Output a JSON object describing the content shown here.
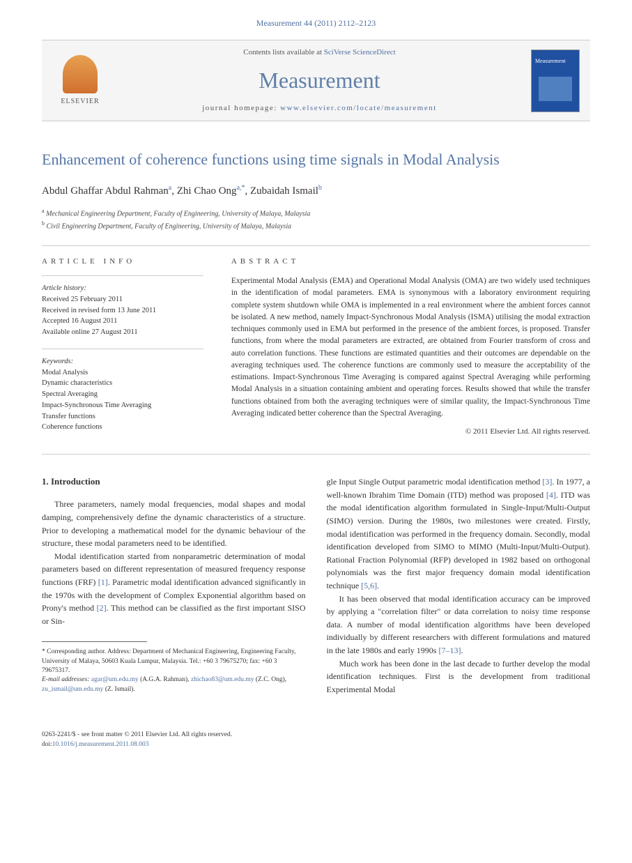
{
  "citation": "Measurement 44 (2011) 2112–2123",
  "banner": {
    "contents_prefix": "Contents lists available at ",
    "contents_link": "SciVerse ScienceDirect",
    "journal": "Measurement",
    "homepage_prefix": "journal homepage: ",
    "homepage_url": "www.elsevier.com/locate/measurement",
    "publisher": "ELSEVIER",
    "cover_label": "Measurement"
  },
  "paper": {
    "title": "Enhancement of coherence functions using time signals in Modal Analysis",
    "authors": [
      {
        "name": "Abdul Ghaffar Abdul Rahman",
        "sup": "a"
      },
      {
        "name": "Zhi Chao Ong",
        "sup": "a,*"
      },
      {
        "name": "Zubaidah Ismail",
        "sup": "b"
      }
    ],
    "affiliations": [
      {
        "sup": "a",
        "text": "Mechanical Engineering Department, Faculty of Engineering, University of Malaya, Malaysia"
      },
      {
        "sup": "b",
        "text": "Civil Engineering Department, Faculty of Engineering, University of Malaya, Malaysia"
      }
    ]
  },
  "info": {
    "label": "ARTICLE INFO",
    "history_title": "Article history:",
    "history": [
      "Received 25 February 2011",
      "Received in revised form 13 June 2011",
      "Accepted 16 August 2011",
      "Available online 27 August 2011"
    ],
    "keywords_title": "Keywords:",
    "keywords": [
      "Modal Analysis",
      "Dynamic characteristics",
      "Spectral Averaging",
      "Impact-Synchronous Time Averaging",
      "Transfer functions",
      "Coherence functions"
    ]
  },
  "abstract": {
    "label": "ABSTRACT",
    "text": "Experimental Modal Analysis (EMA) and Operational Modal Analysis (OMA) are two widely used techniques in the identification of modal parameters. EMA is synonymous with a laboratory environment requiring complete system shutdown while OMA is implemented in a real environment where the ambient forces cannot be isolated. A new method, namely Impact-Synchronous Modal Analysis (ISMA) utilising the modal extraction techniques commonly used in EMA but performed in the presence of the ambient forces, is proposed. Transfer functions, from where the modal parameters are extracted, are obtained from Fourier transform of cross and auto correlation functions. These functions are estimated quantities and their outcomes are dependable on the averaging techniques used. The coherence functions are commonly used to measure the acceptability of the estimations. Impact-Synchronous Time Averaging is compared against Spectral Averaging while performing Modal Analysis in a situation containing ambient and operating forces. Results showed that while the transfer functions obtained from both the averaging techniques were of similar quality, the Impact-Synchronous Time Averaging indicated better coherence than the Spectral Averaging.",
    "copyright": "© 2011 Elsevier Ltd. All rights reserved."
  },
  "body": {
    "heading": "1. Introduction",
    "col1": {
      "p1": "Three parameters, namely modal frequencies, modal shapes and modal damping, comprehensively define the dynamic characteristics of a structure. Prior to developing a mathematical model for the dynamic behaviour of the structure, these modal parameters need to be identified.",
      "p2a": "Modal identification started from nonparametric determination of modal parameters based on different representation of measured frequency response functions (FRF) ",
      "ref1": "[1]",
      "p2b": ". Parametric modal identification advanced significantly in the 1970s with the development of Complex Exponential algorithm based on Prony's method ",
      "ref2": "[2]",
      "p2c": ". This method can be classified as the first important SISO or Sin-"
    },
    "col2": {
      "p1a": "gle Input Single Output parametric modal identification method ",
      "ref3": "[3]",
      "p1b": ". In 1977, a well-known Ibrahim Time Domain (ITD) method was proposed ",
      "ref4": "[4]",
      "p1c": ". ITD was the modal identification algorithm formulated in Single-Input/Multi-Output (SIMO) version. During the 1980s, two milestones were created. Firstly, modal identification was performed in the frequency domain. Secondly, modal identification developed from SIMO to MIMO (Multi-Input/Multi-Output). Rational Fraction Polynomial (RFP) developed in 1982 based on orthogonal polynomials was the first major frequency domain modal identification technique ",
      "ref56": "[5,6]",
      "p1d": ".",
      "p2a": "It has been observed that modal identification accuracy can be improved by applying a \"correlation filter\" or data correlation to noisy time response data. A number of modal identification algorithms have been developed individually by different researchers with different formulations and matured in the late 1980s and early 1990s ",
      "ref713": "[7–13]",
      "p2b": ".",
      "p3": "Much work has been done in the last decade to further develop the modal identification techniques. First is the development from traditional Experimental Modal"
    }
  },
  "footnote": {
    "corr_label": "* Corresponding author. Address: Department of Mechanical Engineering, Engineering Faculty, University of Malaya, 50603 Kuala Lumpur, Malaysia. Tel.: +60 3 79675270; fax: +60 3 79675317.",
    "email_label": "E-mail addresses:",
    "emails": [
      {
        "addr": "agar@um.edu.my",
        "who": "(A.G.A. Rahman),"
      },
      {
        "addr": "zhichao83@um.edu.my",
        "who": "(Z.C. Ong),"
      },
      {
        "addr": "zu_ismail@um.edu.my",
        "who": "(Z. Ismail)."
      }
    ]
  },
  "footer": {
    "issn": "0263-2241/$ - see front matter © 2011 Elsevier Ltd. All rights reserved.",
    "doi_label": "doi:",
    "doi": "10.1016/j.measurement.2011.08.003"
  },
  "colors": {
    "link": "#5070a0",
    "title": "#5575a5",
    "journal": "#6080a8",
    "border": "#cccccc",
    "text": "#333333",
    "cover_bg": "#2050a0"
  }
}
